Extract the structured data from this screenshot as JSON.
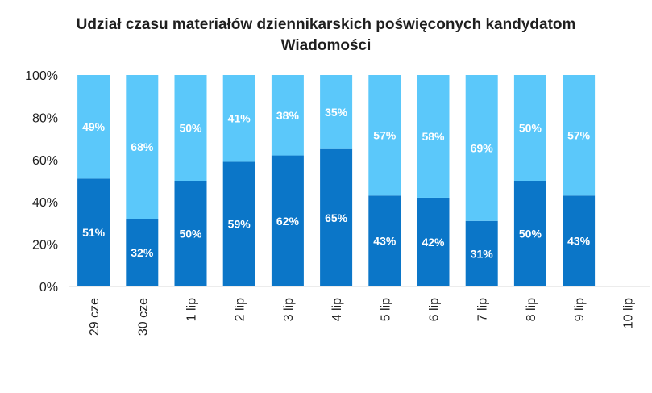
{
  "chart_data": {
    "type": "bar",
    "stacked": true,
    "title_line1": "Udział czasu materiałów dziennikarskich poświęconych kandydatom",
    "title_line2": "Wiadomości",
    "categories": [
      "29 cze",
      "30 cze",
      "1 lip",
      "2 lip",
      "3 lip",
      "4 lip",
      "5 lip",
      "6 lip",
      "7 lip",
      "8 lip",
      "9 lip",
      "10 lip"
    ],
    "series": [
      {
        "name": "lower",
        "color": "#0B76C8",
        "values": [
          51,
          32,
          50,
          59,
          62,
          65,
          43,
          42,
          31,
          50,
          43,
          null
        ],
        "labels": [
          "51%",
          "32%",
          "50%",
          "59%",
          "62%",
          "65%",
          "43%",
          "42%",
          "31%",
          "50%",
          "43%",
          ""
        ]
      },
      {
        "name": "upper",
        "color": "#5BC8FA",
        "values": [
          49,
          68,
          50,
          41,
          38,
          35,
          57,
          58,
          69,
          50,
          57,
          null
        ],
        "labels": [
          "49%",
          "68%",
          "50%",
          "41%",
          "38%",
          "35%",
          "57%",
          "58%",
          "69%",
          "50%",
          "57%",
          ""
        ]
      }
    ],
    "y_ticks": [
      "0%",
      "20%",
      "40%",
      "60%",
      "80%",
      "100%"
    ],
    "ylim": [
      0,
      100
    ],
    "legend": "none"
  }
}
